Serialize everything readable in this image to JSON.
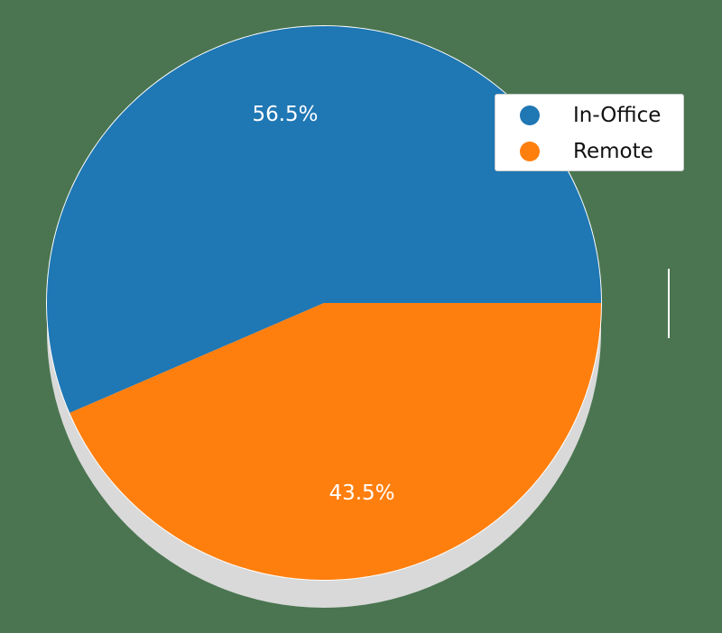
{
  "chart_data": {
    "type": "pie",
    "title": "",
    "categories": [
      "In-Office",
      "Remote"
    ],
    "values": [
      56.5,
      43.5
    ],
    "labels": [
      "56.5%",
      "43.5%"
    ],
    "colors": [
      "#1f77b4",
      "#ff7f0e"
    ],
    "start_angle_deg": 0,
    "direction": "counterclockwise",
    "shadow": true,
    "legend": {
      "position": "upper right",
      "entries": [
        {
          "label": "In-Office",
          "color": "#1f77b4",
          "marker": "circle"
        },
        {
          "label": "Remote",
          "color": "#ff7f0e",
          "marker": "circle"
        }
      ]
    }
  },
  "style": {
    "background": "#4a7550",
    "shadow_color": "#d9d9d9"
  }
}
